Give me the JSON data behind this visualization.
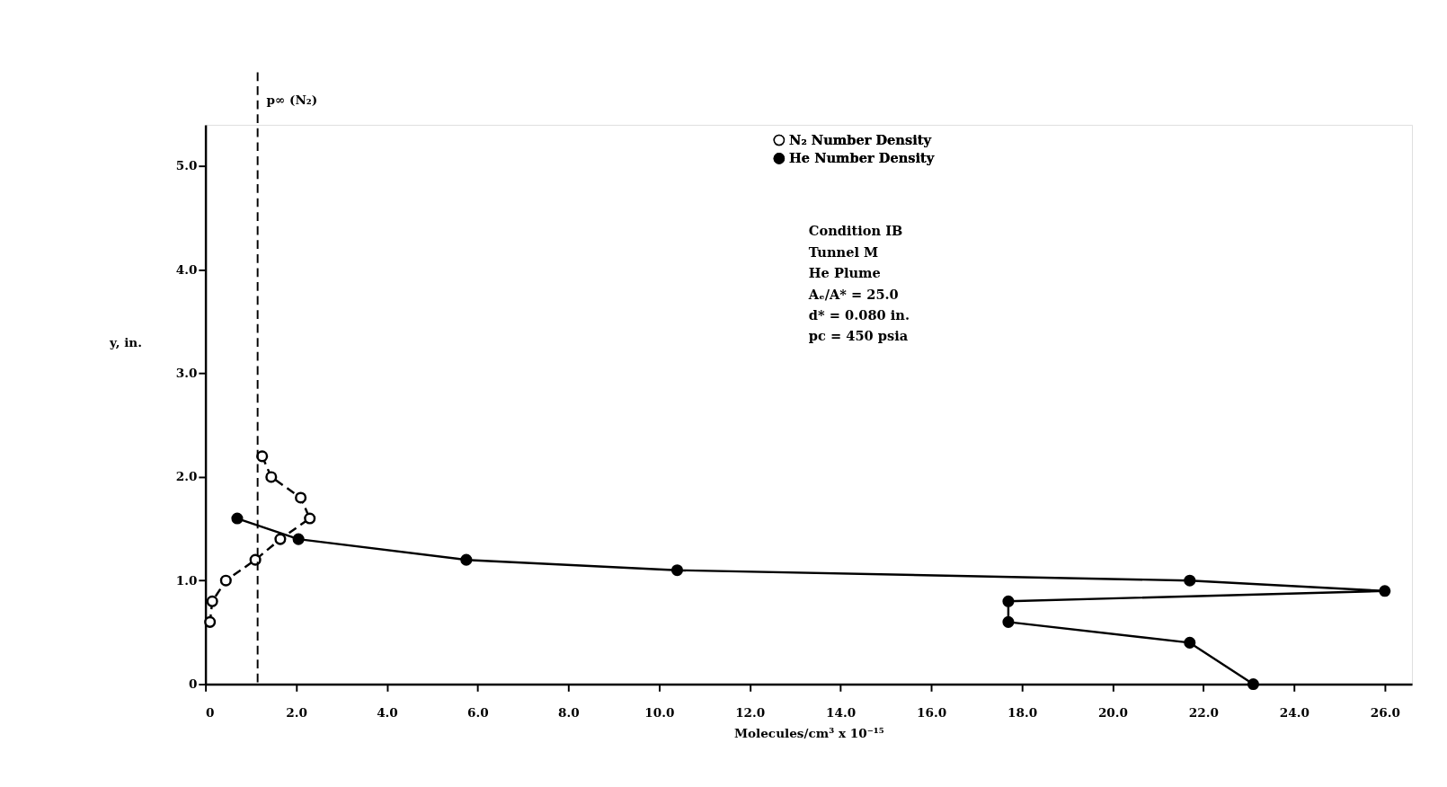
{
  "chart_data": {
    "type": "line",
    "xlabel": "Molecules/cm³ x 10⁻¹⁵",
    "ylabel": "y, in.",
    "xlim": [
      0,
      26.6
    ],
    "ylim": [
      0,
      5.4
    ],
    "xticks": [
      0,
      {
        "value": 2,
        "label": "2.0"
      },
      {
        "value": 4,
        "label": "4.0"
      },
      {
        "value": 6,
        "label": "6.0"
      },
      {
        "value": 8,
        "label": "8.0"
      },
      {
        "value": 10,
        "label": "10.0"
      },
      {
        "value": 12,
        "label": "12.0"
      },
      {
        "value": 14,
        "label": "14.0"
      },
      {
        "value": 16,
        "label": "16.0"
      },
      {
        "value": 18,
        "label": "18.0"
      },
      {
        "value": 20,
        "label": "20.0"
      },
      {
        "value": 22,
        "label": "22.0"
      },
      {
        "value": 24,
        "label": "24.0"
      },
      {
        "value": 26,
        "label": "26.0"
      }
    ],
    "yticks": [
      0,
      {
        "value": 1,
        "label": "1.0"
      },
      {
        "value": 2,
        "label": "2.0"
      },
      {
        "value": 3,
        "label": "3.0"
      },
      {
        "value": 4,
        "label": "4.0"
      },
      {
        "value": 5,
        "label": "5.0"
      }
    ],
    "series": [
      {
        "name": "N₂ Number Density",
        "color": "#000000",
        "line_style": "dashed",
        "x": [
          1.25,
          1.45,
          2.1,
          2.3,
          1.65,
          1.1,
          0.45,
          0.15,
          0.1
        ],
        "values": [
          2.2,
          2.0,
          1.8,
          1.6,
          1.4,
          1.2,
          1.0,
          0.8,
          0.6
        ]
      },
      {
        "name": "He Number Density",
        "color": "#000000",
        "line_style": "solid",
        "x": [
          0.7,
          2.05,
          5.75,
          10.4,
          21.7,
          26.0,
          17.7,
          17.7,
          21.7,
          23.1
        ],
        "values": [
          1.6,
          1.4,
          1.2,
          1.1,
          1.0,
          0.9,
          0.8,
          0.6,
          0.4,
          0.0
        ]
      }
    ],
    "marker": "circle",
    "legend": "top",
    "grid": false,
    "ref_lines": [
      {
        "axis": "x",
        "value": 1.15,
        "label": "p∞ (N₂)",
        "line_style": "dashed",
        "color": "#000000"
      }
    ],
    "annotations": [
      "Condition IB",
      "Tunnel M",
      "He Plume",
      "Aₑ/A* = 25.0",
      "d* = 0.080 in.",
      "pc = 450 psia"
    ]
  }
}
